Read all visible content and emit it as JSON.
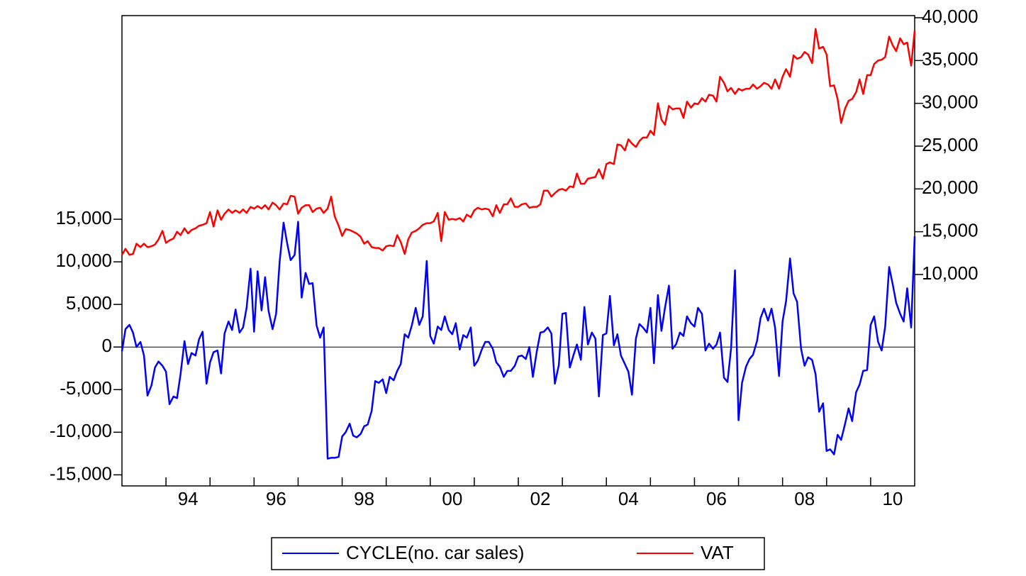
{
  "chart_data": {
    "type": "line",
    "x": [
      1993,
      1993.08,
      1993.17,
      1993.25,
      1993.33,
      1993.42,
      1993.5,
      1993.58,
      1993.67,
      1993.75,
      1993.83,
      1993.92,
      1994,
      1994.08,
      1994.17,
      1994.25,
      1994.33,
      1994.42,
      1994.5,
      1994.58,
      1994.67,
      1994.75,
      1994.83,
      1994.92,
      1995,
      1995.08,
      1995.17,
      1995.25,
      1995.33,
      1995.42,
      1995.5,
      1995.58,
      1995.67,
      1995.75,
      1995.83,
      1995.92,
      1996,
      1996.08,
      1996.17,
      1996.25,
      1996.33,
      1996.42,
      1996.5,
      1996.58,
      1996.67,
      1996.75,
      1996.83,
      1996.92,
      1997,
      1997.08,
      1997.17,
      1997.25,
      1997.33,
      1997.42,
      1997.5,
      1997.58,
      1997.67,
      1997.75,
      1997.83,
      1997.92,
      1998,
      1998.08,
      1998.17,
      1998.25,
      1998.33,
      1998.42,
      1998.5,
      1998.58,
      1998.67,
      1998.75,
      1998.83,
      1998.92,
      1999,
      1999.08,
      1999.17,
      1999.25,
      1999.33,
      1999.42,
      1999.5,
      1999.58,
      1999.67,
      1999.75,
      1999.83,
      1999.92,
      2000,
      2000.08,
      2000.17,
      2000.25,
      2000.33,
      2000.42,
      2000.5,
      2000.58,
      2000.67,
      2000.75,
      2000.83,
      2000.92,
      2001,
      2001.08,
      2001.17,
      2001.25,
      2001.33,
      2001.42,
      2001.5,
      2001.58,
      2001.67,
      2001.75,
      2001.83,
      2001.92,
      2002,
      2002.08,
      2002.17,
      2002.25,
      2002.33,
      2002.42,
      2002.5,
      2002.58,
      2002.67,
      2002.75,
      2002.83,
      2002.92,
      2003,
      2003.08,
      2003.17,
      2003.25,
      2003.33,
      2003.42,
      2003.5,
      2003.58,
      2003.67,
      2003.75,
      2003.83,
      2003.92,
      2004,
      2004.08,
      2004.17,
      2004.25,
      2004.33,
      2004.42,
      2004.5,
      2004.58,
      2004.67,
      2004.75,
      2004.83,
      2004.92,
      2005,
      2005.08,
      2005.17,
      2005.25,
      2005.33,
      2005.42,
      2005.5,
      2005.58,
      2005.67,
      2005.75,
      2005.83,
      2005.92,
      2006,
      2006.08,
      2006.17,
      2006.25,
      2006.33,
      2006.42,
      2006.5,
      2006.58,
      2006.67,
      2006.75,
      2006.83,
      2006.92,
      2007,
      2007.08,
      2007.17,
      2007.25,
      2007.33,
      2007.42,
      2007.5,
      2007.58,
      2007.67,
      2007.75,
      2007.83,
      2007.92,
      2008,
      2008.08,
      2008.17,
      2008.25,
      2008.33,
      2008.42,
      2008.5,
      2008.58,
      2008.67,
      2008.75,
      2008.83,
      2008.92,
      2009,
      2009.08,
      2009.17,
      2009.25,
      2009.33,
      2009.42,
      2009.5,
      2009.58,
      2009.67,
      2009.75,
      2009.83,
      2009.92,
      2010,
      2010.08,
      2010.17,
      2010.25,
      2010.33,
      2010.42,
      2010.5,
      2010.58,
      2010.67,
      2010.75,
      2010.83,
      2010.92,
      2011
    ],
    "xlim": [
      1993,
      2011
    ],
    "xticks": [
      1994,
      1995,
      1996,
      1997,
      1998,
      1999,
      2000,
      2001,
      2002,
      2003,
      2004,
      2005,
      2006,
      2007,
      2008,
      2009,
      2010
    ],
    "xtick_labels": [
      {
        "value": 1994.5,
        "label": "94"
      },
      {
        "value": 1996.5,
        "label": "96"
      },
      {
        "value": 1998.5,
        "label": "98"
      },
      {
        "value": 2000.5,
        "label": "00"
      },
      {
        "value": 2002.5,
        "label": "02"
      },
      {
        "value": 2004.5,
        "label": "04"
      },
      {
        "value": 2006.5,
        "label": "06"
      },
      {
        "value": 2008.5,
        "label": "08"
      },
      {
        "value": 2010.5,
        "label": "10"
      }
    ],
    "ylim": [
      -16300,
      38900
    ],
    "yticks": [
      {
        "value": -15000,
        "label": "-15,000"
      },
      {
        "value": -10000,
        "label": "-10,000"
      },
      {
        "value": -5000,
        "label": "-5,000"
      },
      0,
      {
        "value": 5000,
        "label": "5,000"
      },
      {
        "value": 10000,
        "label": "10,000"
      },
      {
        "value": 15000,
        "label": "15,000"
      }
    ],
    "y2lim": [
      -14700,
      40250
    ],
    "y2ticks": [
      {
        "value": 10000,
        "label": "10,000"
      },
      {
        "value": 15000,
        "label": "15,000"
      },
      {
        "value": 20000,
        "label": "20,000"
      },
      {
        "value": 25000,
        "label": "25,000"
      },
      {
        "value": 30000,
        "label": "30,000"
      },
      {
        "value": 35000,
        "label": "35,000"
      },
      {
        "value": 40000,
        "label": "40,000"
      }
    ],
    "zero_line": true,
    "legend": "bottom",
    "series": [
      {
        "name": "CYCLE(no. car sales)",
        "color": "#0000ff",
        "values": [
          -500,
          2100,
          2600,
          1700,
          0,
          600,
          -1000,
          -5700,
          -4500,
          -2400,
          -1700,
          -2200,
          -2900,
          -6700,
          -5800,
          -6000,
          -3200,
          700,
          -2000,
          -700,
          -1000,
          900,
          1800,
          -4300,
          -1800,
          -600,
          -400,
          -3100,
          1600,
          3000,
          2000,
          4400,
          1700,
          2300,
          4600,
          9200,
          1800,
          8900,
          4300,
          8200,
          4200,
          2100,
          3900,
          10000,
          14600,
          12200,
          10200,
          10800,
          14700,
          5800,
          8700,
          7400,
          7500,
          2500,
          1100,
          2300,
          -13100,
          -13000,
          -13000,
          -12900,
          -10500,
          -10000,
          -9000,
          -10400,
          -10600,
          -10200,
          -9300,
          -9100,
          -7500,
          -4000,
          -4200,
          -3800,
          -5400,
          -3500,
          -3900,
          -2800,
          -2000,
          1500,
          1100,
          2500,
          4600,
          2600,
          3600,
          10100,
          1300,
          400,
          2400,
          2000,
          3600,
          2000,
          1500,
          2800,
          -300,
          1400,
          1100,
          2300,
          -2200,
          -1600,
          -300,
          600,
          600,
          -200,
          -1800,
          -2300,
          -3500,
          -2800,
          -2800,
          -2200,
          -1100,
          -1000,
          -1400,
          0,
          -3500,
          -500,
          1700,
          1800,
          2300,
          1600,
          -4300,
          -2100,
          3900,
          4000,
          -2400,
          -1000,
          300,
          -1500,
          4700,
          300,
          1700,
          1000,
          -5800,
          1400,
          1600,
          6000,
          200,
          1500,
          -1000,
          -2000,
          -2900,
          -5600,
          1000,
          2700,
          2300,
          1700,
          4600,
          -1900,
          6100,
          1900,
          4600,
          7200,
          -200,
          300,
          1700,
          1300,
          3600,
          2800,
          2400,
          4600,
          3900,
          -400,
          400,
          -200,
          300,
          1700,
          -3600,
          -4100,
          -200,
          9000,
          -8600,
          -4200,
          -2300,
          -1400,
          -900,
          700,
          3400,
          4500,
          3100,
          4500,
          2300,
          -3400,
          3000,
          5400,
          10400,
          6300,
          5300,
          -200,
          -2200,
          -1200,
          -1500,
          -3200,
          -7600,
          -6600,
          -12200,
          -12000,
          -12600,
          -10300,
          -10900,
          -9000,
          -7200,
          -8700,
          -5300,
          -4400,
          -2800,
          -2700,
          2600,
          3600,
          600,
          -400,
          2400,
          9400,
          7400,
          5200,
          3900,
          3000,
          6900,
          2300,
          13000
        ]
      },
      {
        "name": "VAT",
        "color": "#ff0000",
        "axis": "y2",
        "values": [
          12300,
          13000,
          12300,
          12400,
          13600,
          13200,
          13600,
          13200,
          13300,
          13500,
          14100,
          15100,
          13700,
          14000,
          14200,
          15000,
          14600,
          15400,
          14800,
          15200,
          15400,
          15700,
          15800,
          16000,
          17300,
          15600,
          17500,
          16400,
          17100,
          17600,
          17200,
          17500,
          17200,
          17600,
          17200,
          17900,
          17700,
          18000,
          17700,
          18100,
          17600,
          18400,
          18100,
          17600,
          18300,
          18200,
          19200,
          19100,
          17100,
          17800,
          18100,
          18100,
          17300,
          17700,
          17800,
          17200,
          17700,
          19100,
          16800,
          15700,
          14500,
          15300,
          15200,
          15000,
          14800,
          14400,
          13600,
          13900,
          13200,
          13100,
          13100,
          12800,
          13300,
          13400,
          13300,
          14600,
          13800,
          12400,
          14100,
          14900,
          15100,
          15400,
          15800,
          16000,
          16000,
          16200,
          17200,
          13900,
          17300,
          16400,
          16500,
          16400,
          16600,
          16200,
          17000,
          16700,
          17500,
          17800,
          17600,
          17700,
          17600,
          16800,
          18100,
          17200,
          18200,
          18200,
          18900,
          17900,
          17900,
          18200,
          18300,
          17800,
          17900,
          17900,
          18200,
          19800,
          19800,
          19100,
          19500,
          19900,
          20000,
          19800,
          20300,
          20200,
          21800,
          20600,
          20600,
          21200,
          21300,
          21400,
          22300,
          21200,
          22900,
          23100,
          22900,
          25200,
          25100,
          24500,
          25800,
          25300,
          24900,
          25600,
          26000,
          26000,
          26800,
          26300,
          30000,
          28100,
          27500,
          29700,
          29300,
          29400,
          29400,
          28300,
          30200,
          29500,
          30000,
          29900,
          30600,
          30200,
          31000,
          30900,
          30200,
          33100,
          32400,
          31400,
          31800,
          31100,
          31700,
          31500,
          31700,
          31700,
          32200,
          31700,
          32000,
          32400,
          32200,
          31700,
          32800,
          31700,
          33100,
          34000,
          33100,
          35600,
          35200,
          35400,
          36000,
          35700,
          34700,
          38700,
          36400,
          36600,
          35700,
          32000,
          32100,
          30500,
          27700,
          29400,
          30300,
          30500,
          31300,
          32800,
          31100,
          33300,
          33300,
          34600,
          35000,
          35100,
          35400,
          37800,
          36800,
          36100,
          37600,
          36900,
          37100,
          34400,
          38500
        ]
      }
    ]
  }
}
